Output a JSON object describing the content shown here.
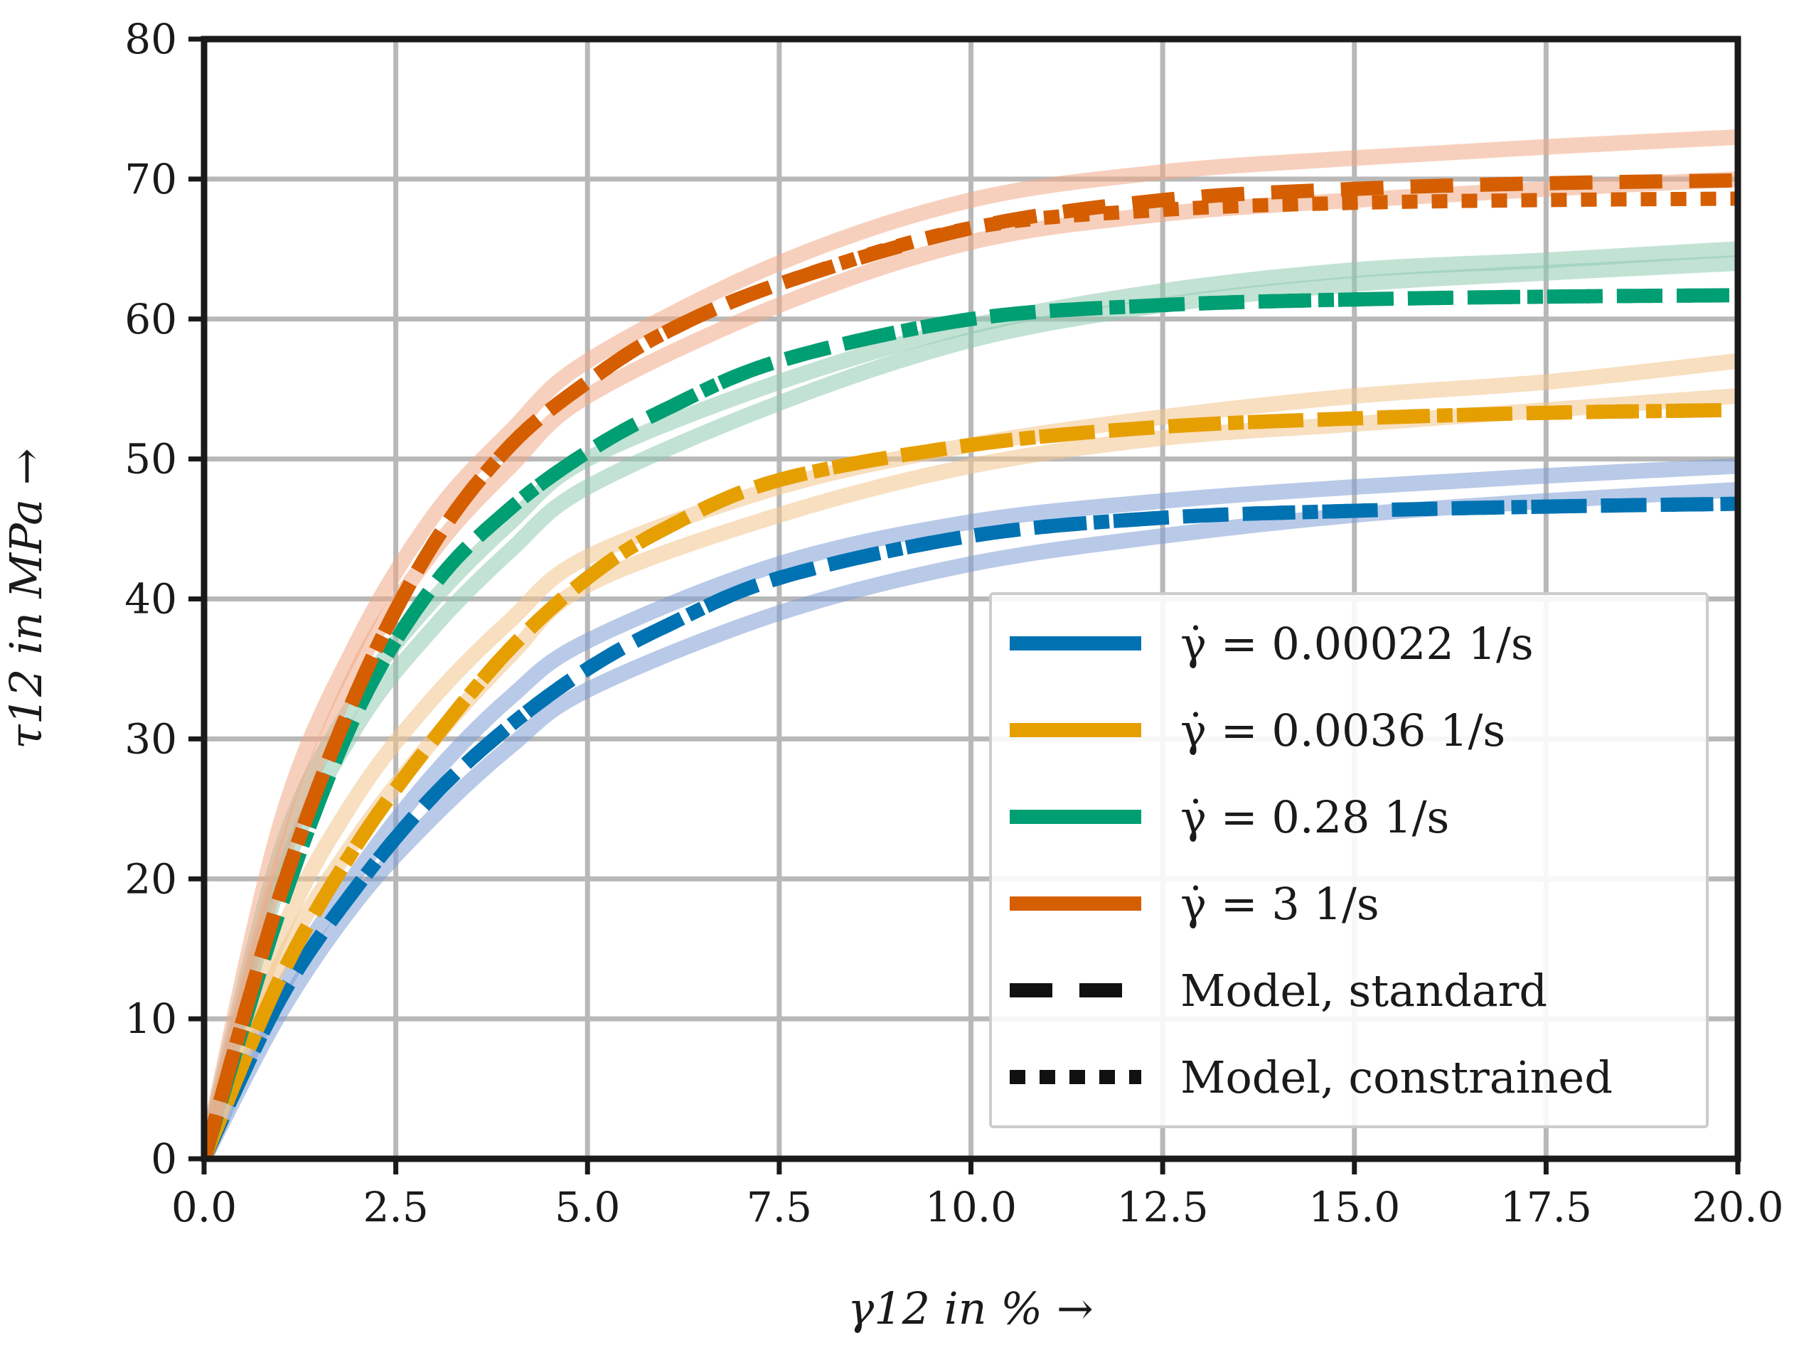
{
  "chart_data": {
    "type": "line",
    "xlabel": "γ12 in % →",
    "ylabel": "τ12 in MPa →",
    "xlim": [
      0,
      20
    ],
    "ylim": [
      0,
      80
    ],
    "xticks": [
      "0.0",
      "2.5",
      "5.0",
      "7.5",
      "10.0",
      "12.5",
      "15.0",
      "17.5",
      "20.0"
    ],
    "yticks": [
      "0",
      "10",
      "20",
      "30",
      "40",
      "50",
      "60",
      "70",
      "80"
    ],
    "grid": true,
    "legend_position": "lower-right",
    "legend": [
      {
        "label": "γ̇ = 0.00022 1/s",
        "style": "solid",
        "color": "#0072b2"
      },
      {
        "label": "γ̇ = 0.0036 1/s",
        "style": "solid",
        "color": "#e69f00"
      },
      {
        "label": "γ̇ = 0.28 1/s",
        "style": "solid",
        "color": "#009e73"
      },
      {
        "label": "γ̇ = 3 1/s",
        "style": "solid",
        "color": "#d55e00"
      },
      {
        "label": "Model, standard",
        "style": "dashed",
        "color": "#111111"
      },
      {
        "label": "Model, constrained",
        "style": "dotted",
        "color": "#111111"
      }
    ],
    "series": [
      {
        "name": "γ̇ = 0.00022 1/s",
        "color": "#0072b2",
        "experimental_color": "#7f9fd6",
        "model_standard": {
          "x": [
            0,
            1,
            2,
            3,
            4,
            5,
            6,
            7.5,
            10,
            12.5,
            15,
            17.5,
            20
          ],
          "y": [
            0,
            11.5,
            19.5,
            26,
            31,
            35,
            38,
            41.5,
            44.5,
            45.8,
            46.3,
            46.6,
            46.8
          ]
        },
        "model_constrained": {
          "x": [
            0,
            1,
            2,
            3,
            4,
            5,
            6,
            7.5,
            10,
            12.5,
            15,
            17.5,
            20
          ],
          "y": [
            0,
            11.5,
            19.5,
            26,
            31,
            35,
            38,
            41.5,
            44.5,
            45.8,
            46.3,
            46.6,
            46.8
          ]
        },
        "experiments": [
          {
            "x": [
              0,
              1,
              2,
              3,
              4,
              5,
              7.5,
              10,
              12.5,
              15,
              17.5,
              20
            ],
            "y": [
              0,
              12,
              20.5,
              27.5,
              33,
              37,
              42.5,
              45.5,
              47,
              48,
              48.8,
              49.5
            ]
          },
          {
            "x": [
              0,
              1,
              2,
              3,
              4,
              5,
              7.5,
              10,
              12.5,
              15,
              17.5,
              20
            ],
            "y": [
              0,
              10.5,
              18.5,
              24.5,
              29.5,
              33.5,
              39,
              42.5,
              44.5,
              46,
              47,
              47.8
            ]
          }
        ]
      },
      {
        "name": "γ̇ = 0.0036 1/s",
        "color": "#e69f00",
        "experimental_color": "#f2c48c",
        "model_standard": {
          "x": [
            0,
            1,
            2,
            3,
            4,
            5,
            6,
            7.5,
            10,
            12.5,
            15,
            17.5,
            20
          ],
          "y": [
            0,
            13,
            22.5,
            30,
            36.5,
            41.5,
            45,
            48.5,
            51,
            52.3,
            52.9,
            53.3,
            53.5
          ]
        },
        "model_constrained": {
          "x": [
            0,
            1,
            2,
            3,
            4,
            5,
            6,
            7.5,
            10,
            12.5,
            15,
            17.5,
            20
          ],
          "y": [
            0,
            13,
            22.5,
            30,
            36.5,
            41.5,
            45,
            48.5,
            51,
            52.3,
            52.9,
            53.3,
            53.5
          ]
        },
        "experiments": [
          {
            "x": [
              0,
              1,
              2,
              3,
              4,
              5,
              7.5,
              10,
              12.5,
              15,
              17.5,
              20
            ],
            "y": [
              0,
              16,
              26,
              33,
              38.5,
              43,
              48,
              51,
              53,
              54.5,
              55.5,
              57
            ]
          },
          {
            "x": [
              0,
              1,
              2,
              3,
              4,
              5,
              7.5,
              10,
              12.5,
              15,
              17.5,
              20
            ],
            "y": [
              0,
              14,
              23,
              30,
              36,
              41,
              46,
              49.5,
              51.5,
              52.5,
              53.5,
              54.5
            ]
          }
        ]
      },
      {
        "name": "γ̇ = 0.28 1/s",
        "color": "#009e73",
        "experimental_color": "#8fcbb0",
        "model_standard": {
          "x": [
            0,
            1,
            2,
            3,
            4,
            5,
            6,
            7.5,
            10,
            12.5,
            15,
            17.5,
            20
          ],
          "y": [
            0,
            18,
            32,
            41,
            46.5,
            50.5,
            53.5,
            57,
            60,
            61,
            61.4,
            61.6,
            61.7
          ]
        },
        "model_constrained": {
          "x": [
            0,
            1,
            2,
            3,
            4,
            5,
            6,
            7.5,
            10,
            12.5,
            15,
            17.5,
            20
          ],
          "y": [
            0,
            18,
            32,
            41,
            46.5,
            50.5,
            53.5,
            57,
            60,
            61,
            61.4,
            61.6,
            61.7
          ]
        },
        "experiments": [
          {
            "x": [
              0,
              1,
              2,
              3,
              4,
              5,
              7.5,
              10,
              12.5,
              15,
              17.5,
              20
            ],
            "y": [
              0,
              22,
              33,
              40,
              45.5,
              50,
              55.5,
              59.5,
              62,
              63.5,
              64.2,
              65
            ]
          },
          {
            "x": [
              0,
              1,
              2,
              3,
              4,
              5,
              7.5,
              10,
              12.5,
              15,
              17.5,
              20
            ],
            "y": [
              0,
              20,
              31,
              38,
              43.5,
              48,
              54,
              58.5,
              61,
              62.5,
              63.3,
              64
            ]
          }
        ]
      },
      {
        "name": "γ̇ = 3 1/s",
        "color": "#d55e00",
        "experimental_color": "#f0a987",
        "model_standard": {
          "x": [
            0,
            1,
            2,
            3,
            4,
            5,
            6,
            7.5,
            10,
            12.5,
            15,
            17.5,
            20
          ],
          "y": [
            0,
            19,
            33.5,
            44,
            51,
            55.5,
            59,
            62.5,
            66.5,
            68.5,
            69.3,
            69.7,
            69.9
          ]
        },
        "model_constrained": {
          "x": [
            0,
            1,
            2,
            3,
            4,
            5,
            6,
            7.5,
            10,
            12.5,
            15,
            17.5,
            20
          ],
          "y": [
            0,
            19,
            33.5,
            44,
            51,
            55.5,
            59,
            62.5,
            66.5,
            67.8,
            68.3,
            68.5,
            68.6
          ]
        },
        "experiments": [
          {
            "x": [
              0,
              1,
              2,
              3,
              4,
              5,
              7.5,
              10,
              12.5,
              15,
              17.5,
              20
            ],
            "y": [
              0,
              24,
              37,
              46,
              52,
              57,
              64,
              68.5,
              70.5,
              71.5,
              72.3,
              73
            ]
          },
          {
            "x": [
              0,
              1,
              2,
              3,
              4,
              5,
              7.5,
              10,
              12.5,
              15,
              17.5,
              20
            ],
            "y": [
              0,
              21,
              35,
              43.5,
              49.5,
              54.5,
              61,
              65.5,
              67.5,
              68.5,
              69.3,
              70
            ]
          }
        ]
      }
    ]
  }
}
